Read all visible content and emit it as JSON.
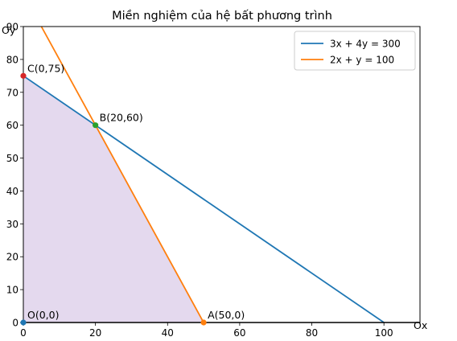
{
  "chart_data": {
    "type": "line",
    "title": "Miền nghiệm của hệ bất phương trình",
    "xlabel": "Ox",
    "ylabel": "Oy",
    "xlim": [
      0,
      110
    ],
    "ylim": [
      0,
      90
    ],
    "xticks": [
      0,
      20,
      40,
      60,
      80,
      100
    ],
    "yticks": [
      0,
      10,
      20,
      30,
      40,
      50,
      60,
      70,
      80,
      90
    ],
    "grid": false,
    "legend_position": "top-right",
    "series": [
      {
        "name": "3x + 4y = 300",
        "color": "#1f77b4",
        "x": [
          0,
          100
        ],
        "y": [
          75,
          0
        ]
      },
      {
        "name": "2x + y = 100",
        "color": "#ff7f0e",
        "x": [
          5,
          50
        ],
        "y": [
          90,
          0
        ]
      }
    ],
    "feasible_region": {
      "color": "#9467bd",
      "vertices": [
        [
          0,
          0
        ],
        [
          50,
          0
        ],
        [
          20,
          60
        ],
        [
          0,
          75
        ]
      ]
    },
    "points": [
      {
        "label": "O(0,0)",
        "x": 0,
        "y": 0,
        "color": "#1f77b4"
      },
      {
        "label": "A(50,0)",
        "x": 50,
        "y": 0,
        "color": "#ff7f0e"
      },
      {
        "label": "B(20,60)",
        "x": 20,
        "y": 60,
        "color": "#2ca02c"
      },
      {
        "label": "C(0,75)",
        "x": 0,
        "y": 75,
        "color": "#d62728"
      }
    ]
  }
}
